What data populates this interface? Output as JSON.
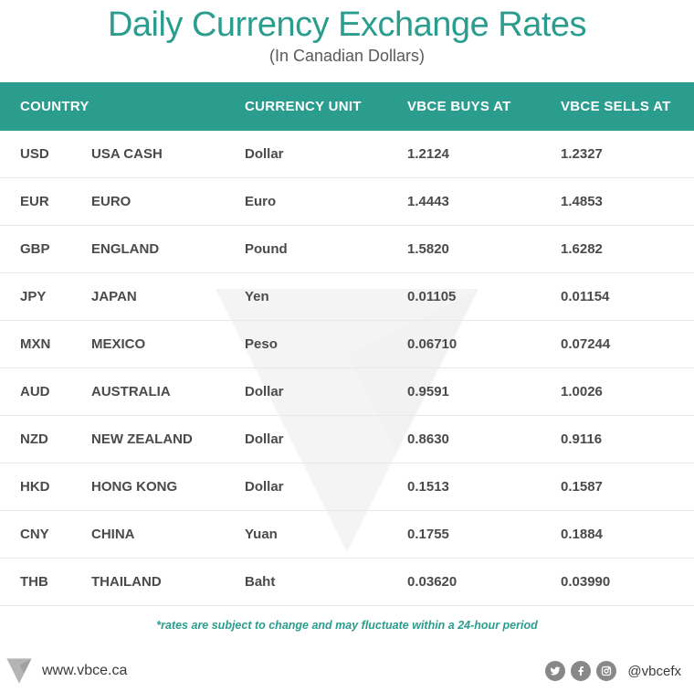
{
  "colors": {
    "teal": "#2a9d8f",
    "header_bg": "#2a9d8f",
    "title_color": "#2a9d8f",
    "subtitle_color": "#5a5a5a",
    "row_text": "#4a4a4a",
    "disclaimer_color": "#2a9d8f",
    "border_color": "#e8e8e8"
  },
  "title": "Daily Currency Exchange Rates",
  "subtitle": "(In Canadian Dollars)",
  "table": {
    "headers": {
      "country": "COUNTRY",
      "unit": "CURRENCY UNIT",
      "buys": "VBCE BUYS AT",
      "sells": "VBCE SELLS AT"
    },
    "rows": [
      {
        "code": "USD",
        "country": "USA CASH",
        "unit": "Dollar",
        "buys": "1.2124",
        "sells": "1.2327"
      },
      {
        "code": "EUR",
        "country": "EURO",
        "unit": "Euro",
        "buys": "1.4443",
        "sells": "1.4853"
      },
      {
        "code": "GBP",
        "country": "ENGLAND",
        "unit": "Pound",
        "buys": "1.5820",
        "sells": "1.6282"
      },
      {
        "code": "JPY",
        "country": "JAPAN",
        "unit": "Yen",
        "buys": "0.01105",
        "sells": "0.01154"
      },
      {
        "code": "MXN",
        "country": "MEXICO",
        "unit": "Peso",
        "buys": "0.06710",
        "sells": "0.07244"
      },
      {
        "code": "AUD",
        "country": "AUSTRALIA",
        "unit": "Dollar",
        "buys": "0.9591",
        "sells": "1.0026"
      },
      {
        "code": "NZD",
        "country": "NEW ZEALAND",
        "unit": "Dollar",
        "buys": "0.8630",
        "sells": "0.9116"
      },
      {
        "code": "HKD",
        "country": "HONG KONG",
        "unit": "Dollar",
        "buys": "0.1513",
        "sells": "0.1587"
      },
      {
        "code": "CNY",
        "country": "CHINA",
        "unit": "Yuan",
        "buys": "0.1755",
        "sells": "0.1884"
      },
      {
        "code": "THB",
        "country": "THAILAND",
        "unit": "Baht",
        "buys": "0.03620",
        "sells": "0.03990"
      }
    ]
  },
  "disclaimer": "*rates are subject to change and may fluctuate within a 24-hour period",
  "footer": {
    "website": "www.vbce.ca",
    "handle": "@vbcefx"
  }
}
